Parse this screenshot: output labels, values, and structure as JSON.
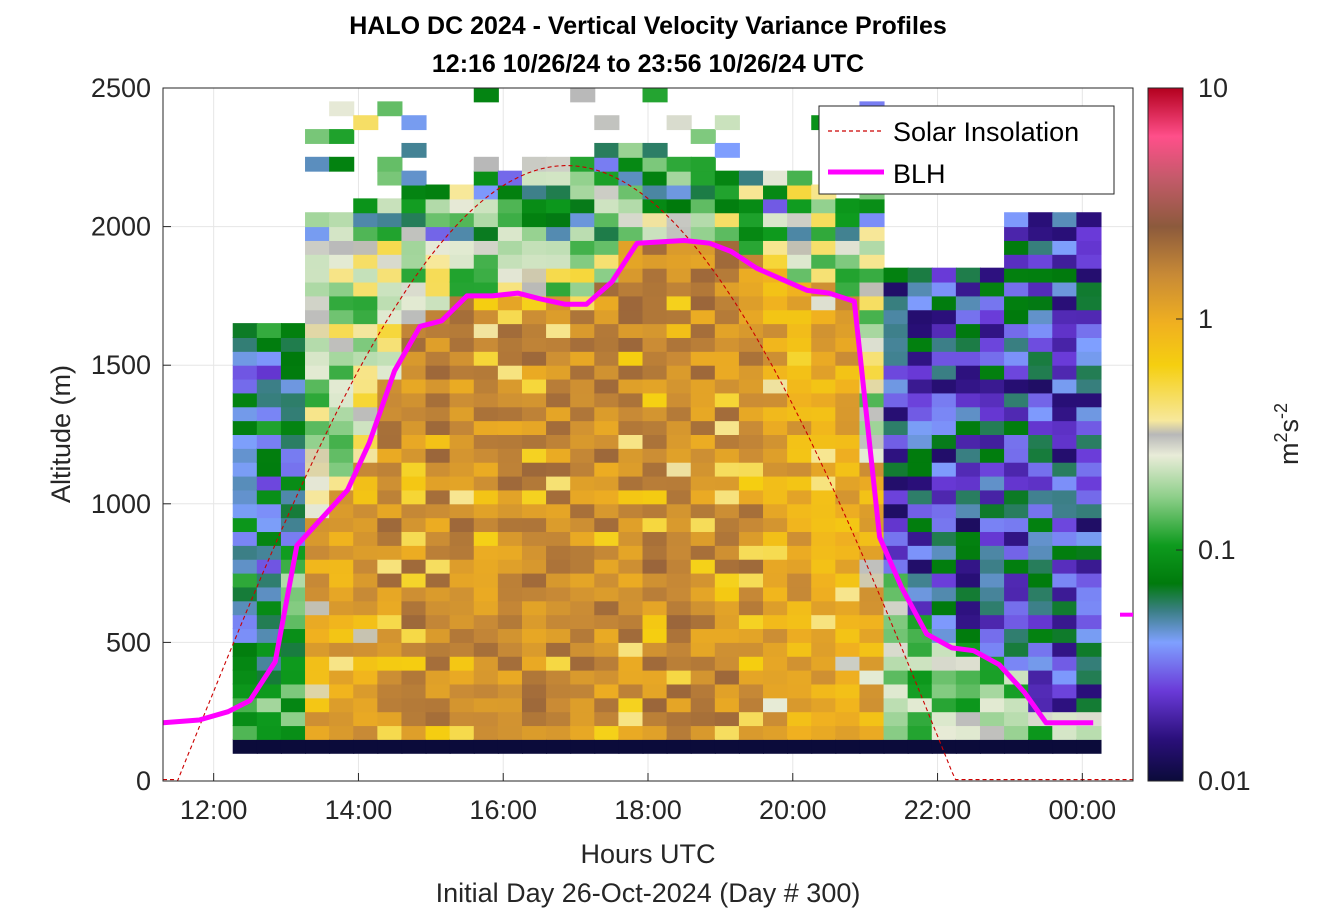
{
  "chart_data": {
    "type": "heatmap",
    "title": "HALO DC 2024 - Vertical Velocity Variance Profiles",
    "subtitle": "12:16 10/26/24 to 23:56 10/26/24  UTC",
    "xlabel": "Hours UTC",
    "xlabel2": "Initial Day 26-Oct-2024 (Day # 300)",
    "ylabel": "Altitude (m)",
    "colorbar_label_base": "m",
    "colorbar_label_sup1": "2",
    "colorbar_label_mid": "s",
    "colorbar_label_sup2": "-2",
    "x_range_hours": [
      11.3,
      24.7
    ],
    "y_range_m": [
      0,
      2500
    ],
    "x_ticks": [
      "12:00",
      "14:00",
      "16:00",
      "18:00",
      "20:00",
      "22:00",
      "00:00"
    ],
    "x_tick_hours": [
      12,
      14,
      16,
      18,
      20,
      22,
      24
    ],
    "y_ticks": [
      "0",
      "500",
      "1000",
      "1500",
      "2000",
      "2500"
    ],
    "y_tick_values": [
      0,
      500,
      1000,
      1500,
      2000,
      2500
    ],
    "colorbar_ticks": [
      "0.01",
      "0.1",
      "1",
      "10"
    ],
    "colorbar_tick_values": [
      0.01,
      0.1,
      1,
      10
    ],
    "colorbar_scale": "log",
    "grid": true,
    "legend_placement": "top-right",
    "legend": [
      "Solar Insolation",
      "BLH"
    ],
    "heatmap_grid": {
      "time_start_hour": 12.27,
      "time_step_hours": 0.333,
      "columns": 36,
      "altitude_start_m": 100,
      "altitude_step_m": 50,
      "rows": 48,
      "note_values": "log10 variance estimated per column; low layer near surface is ~0.01"
    },
    "blh_series": {
      "name": "BLH",
      "color": "#ff00ff",
      "x_hours": [
        11.3,
        11.8,
        12.2,
        12.5,
        12.85,
        13.15,
        13.5,
        13.85,
        14.15,
        14.5,
        14.85,
        15.15,
        15.5,
        15.85,
        16.2,
        16.5,
        16.85,
        17.15,
        17.5,
        17.85,
        18.2,
        18.5,
        18.85,
        19.15,
        19.5,
        19.85,
        20.2,
        20.5,
        20.85,
        21.2,
        21.5,
        21.85,
        22.2,
        22.5,
        22.85,
        23.2,
        23.5,
        23.85,
        24.15
      ],
      "y_m": [
        210,
        220,
        250,
        290,
        430,
        850,
        950,
        1050,
        1220,
        1480,
        1640,
        1660,
        1750,
        1750,
        1760,
        1740,
        1720,
        1720,
        1800,
        1940,
        1945,
        1950,
        1940,
        1910,
        1850,
        1810,
        1770,
        1760,
        1730,
        880,
        700,
        530,
        480,
        470,
        420,
        320,
        210,
        210,
        210
      ]
    },
    "solar_series": {
      "name": "Solar Insolation",
      "color": "#cc0000",
      "style": "dashed",
      "sunrise_hour": 11.5,
      "sunset_hour": 22.25,
      "peak_hour": 16.87,
      "peak_m": 2220,
      "night_level_m": 5
    },
    "annotation_marker_m": 600
  }
}
